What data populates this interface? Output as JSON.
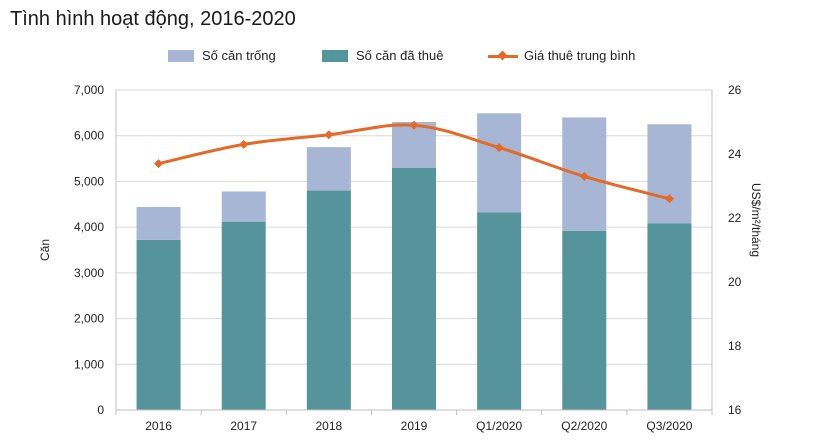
{
  "chart_data": {
    "type": "bar",
    "title": "Tình hình hoạt động, 2016-2020",
    "categories": [
      "2016",
      "2017",
      "2018",
      "2019",
      "Q1/2020",
      "Q2/2020",
      "Q3/2020"
    ],
    "series": [
      {
        "name": "Số căn đã thuê",
        "kind": "bar-stacked",
        "axis": "left",
        "color": "#55949a",
        "values": [
          3720,
          4120,
          4800,
          5300,
          4320,
          3920,
          4080
        ]
      },
      {
        "name": "Số căn trống",
        "kind": "bar-stacked",
        "axis": "left",
        "color": "#a6b6d4",
        "values": [
          720,
          660,
          950,
          1000,
          2170,
          2480,
          2170
        ]
      },
      {
        "name": "Giá thuê trung bình",
        "kind": "line",
        "axis": "right",
        "color": "#e46a2a",
        "values": [
          23.7,
          24.3,
          24.6,
          24.9,
          24.2,
          23.3,
          22.6
        ]
      }
    ],
    "legend_order": [
      "Số căn trống",
      "Số căn đã thuê",
      "Giá thuê trung bình"
    ],
    "ylabel": "Căn",
    "ylim": [
      0,
      7000
    ],
    "yticks": [
      "0",
      "1,000",
      "2,000",
      "3,000",
      "4,000",
      "5,000",
      "6,000",
      "7,000"
    ],
    "y2label": "US$/m²/tháng",
    "y2lim": [
      16,
      26
    ],
    "y2ticks": [
      "16",
      "18",
      "20",
      "22",
      "24",
      "26"
    ],
    "grid": true,
    "legend_position": "top"
  }
}
